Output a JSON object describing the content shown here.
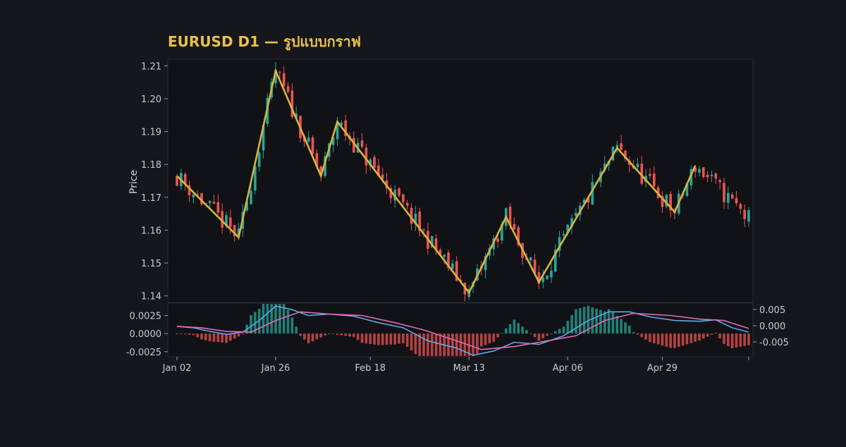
{
  "chart_data": {
    "type": "candlestick",
    "title": "EURUSD D1 — รูปแบบกราฟ",
    "ylabel": "Price",
    "xlabel": "",
    "ylim": [
      1.138,
      1.212
    ],
    "y_tick_labels": [
      "1.21",
      "1.20",
      "1.19",
      "1.18",
      "1.17",
      "1.16",
      "1.15",
      "1.14"
    ],
    "y_ticks": [
      1.21,
      1.2,
      1.19,
      1.18,
      1.17,
      1.16,
      1.15,
      1.14
    ],
    "x_tick_labels": [
      "Jan 02",
      "Jan 26",
      "Feb 18",
      "Mar 13",
      "Apr 06",
      "Apr 29"
    ],
    "x_ticks": [
      "2024-01-02",
      "2024-01-26",
      "2024-02-18",
      "2024-03-13",
      "2024-04-06",
      "2024-04-29"
    ],
    "x_range": [
      "2024-01-02",
      "2024-05-20"
    ],
    "zigzag": [
      {
        "date": "2024-01-02",
        "price": 1.1765
      },
      {
        "date": "2024-01-17",
        "price": 1.1578
      },
      {
        "date": "2024-01-26",
        "price": 1.2085
      },
      {
        "date": "2024-02-06",
        "price": 1.1765
      },
      {
        "date": "2024-02-10",
        "price": 1.193
      },
      {
        "date": "2024-03-13",
        "price": 1.141
      },
      {
        "date": "2024-03-22",
        "price": 1.164
      },
      {
        "date": "2024-03-30",
        "price": 1.1442
      },
      {
        "date": "2024-04-18",
        "price": 1.185
      },
      {
        "date": "2024-05-02",
        "price": 1.1655
      },
      {
        "date": "2024-05-07",
        "price": 1.1797
      }
    ],
    "candle_colors": {
      "up": "#26a69a",
      "down": "#ef5350"
    },
    "zigzag_color": "#d9b340",
    "indicator": {
      "type": "macd",
      "ylim": [
        -0.0032,
        0.0042
      ],
      "left_tick_labels": [
        "0.0025",
        "0.0000",
        "-0.0025"
      ],
      "left_ticks": [
        0.0025,
        0.0,
        -0.0025
      ],
      "right_tick_labels": [
        "0.005",
        "0.000",
        "-0.005"
      ],
      "right_ticks": [
        0.005,
        0.0,
        -0.005
      ],
      "series": [
        {
          "color": "#5ea9e8",
          "points": [
            [
              "2024-01-02",
              0.001
            ],
            [
              "2024-01-06",
              0.0008
            ],
            [
              "2024-01-10",
              0.0003
            ],
            [
              "2024-01-14",
              -0.0001
            ],
            [
              "2024-01-18",
              0.0002
            ],
            [
              "2024-01-22",
              0.0018
            ],
            [
              "2024-01-26",
              0.0038
            ],
            [
              "2024-01-30",
              0.0033
            ],
            [
              "2024-02-03",
              0.0025
            ],
            [
              "2024-02-08",
              0.0027
            ],
            [
              "2024-02-14",
              0.0024
            ],
            [
              "2024-02-20",
              0.0015
            ],
            [
              "2024-02-26",
              0.0008
            ],
            [
              "2024-03-03",
              -0.001
            ],
            [
              "2024-03-10",
              -0.002
            ],
            [
              "2024-03-14",
              -0.003
            ],
            [
              "2024-03-19",
              -0.0024
            ],
            [
              "2024-03-24",
              -0.0012
            ],
            [
              "2024-03-30",
              -0.0015
            ],
            [
              "2024-04-05",
              -0.0003
            ],
            [
              "2024-04-11",
              0.0018
            ],
            [
              "2024-04-16",
              0.003
            ],
            [
              "2024-04-21",
              0.003
            ],
            [
              "2024-04-26",
              0.0023
            ],
            [
              "2024-05-02",
              0.0018
            ],
            [
              "2024-05-08",
              0.0017
            ],
            [
              "2024-05-12",
              0.0019
            ],
            [
              "2024-05-16",
              0.0008
            ],
            [
              "2024-05-20",
              0.0002
            ]
          ]
        },
        {
          "color": "#e06bb8",
          "points": [
            [
              "2024-01-02",
              0.001
            ],
            [
              "2024-01-08",
              0.0008
            ],
            [
              "2024-01-14",
              0.0003
            ],
            [
              "2024-01-20",
              0.0002
            ],
            [
              "2024-01-26",
              0.0018
            ],
            [
              "2024-02-01",
              0.003
            ],
            [
              "2024-02-08",
              0.0027
            ],
            [
              "2024-02-16",
              0.0025
            ],
            [
              "2024-02-24",
              0.0015
            ],
            [
              "2024-03-02",
              0.0005
            ],
            [
              "2024-03-10",
              -0.001
            ],
            [
              "2024-03-16",
              -0.0022
            ],
            [
              "2024-03-24",
              -0.0018
            ],
            [
              "2024-04-01",
              -0.001
            ],
            [
              "2024-04-08",
              -0.0003
            ],
            [
              "2024-04-15",
              0.0018
            ],
            [
              "2024-04-22",
              0.0028
            ],
            [
              "2024-05-01",
              0.0025
            ],
            [
              "2024-05-08",
              0.002
            ],
            [
              "2024-05-14",
              0.0018
            ],
            [
              "2024-05-20",
              0.0007
            ]
          ]
        }
      ],
      "histogram_colors": {
        "up": "#26a69a",
        "down": "#ef5350"
      }
    }
  }
}
